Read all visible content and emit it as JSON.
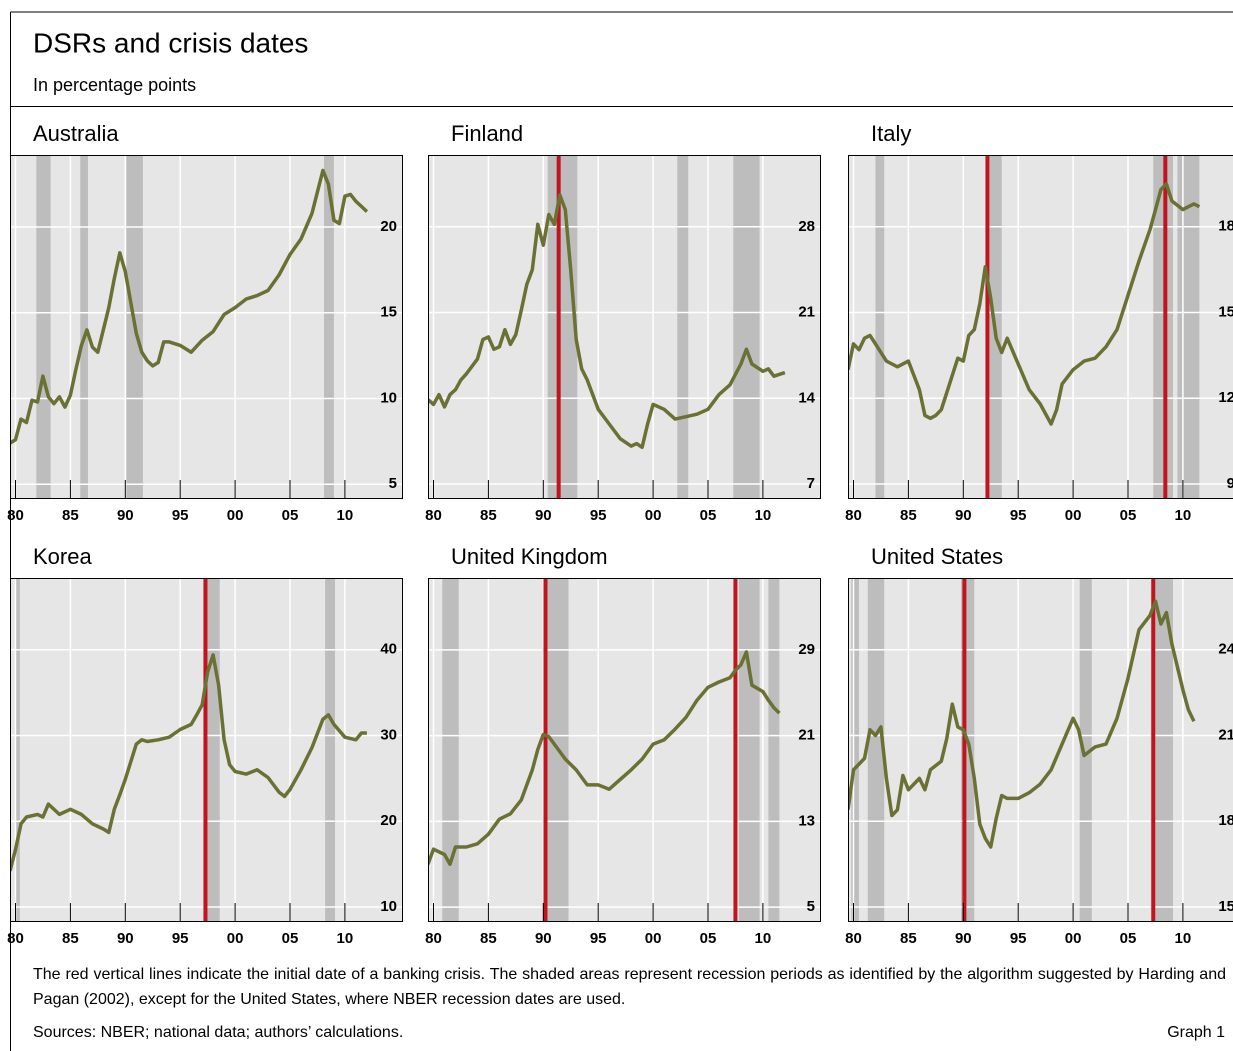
{
  "title": "DSRs and crisis dates",
  "subtitle": "In percentage points",
  "note": "The red vertical lines indicate the initial date of a banking crisis. The shaded areas represent recession periods as identified by the algorithm suggested by Harding and Pagan (2002), except for the United States, where NBER recession dates are used.",
  "sources": "Sources: NBER; national data; authors’ calculations.",
  "graph_label": "Graph 1",
  "chart_data": [
    {
      "type": "line",
      "title": "Australia",
      "color": "#6b7033",
      "recession_color": "#bdbdbd",
      "crisis_color": "#c0141e",
      "grid": true,
      "xlim": [
        1979.5,
        2015.2
      ],
      "ylim": [
        4.2,
        24.2
      ],
      "xticks": [
        {
          "value": 1980,
          "label": "80"
        },
        {
          "value": 1985,
          "label": "85"
        },
        {
          "value": 1990,
          "label": "90"
        },
        {
          "value": 1995,
          "label": "95"
        },
        {
          "value": 2000,
          "label": "00"
        },
        {
          "value": 2005,
          "label": "05"
        },
        {
          "value": 2010,
          "label": "10"
        }
      ],
      "yticks": [
        5,
        10,
        15,
        20
      ],
      "recessions": [
        [
          1981.9,
          1983.2
        ],
        [
          1985.9,
          1986.6
        ],
        [
          1990.1,
          1991.6
        ],
        [
          2008.1,
          2009.0
        ]
      ],
      "crises": [],
      "x": [
        1979.5,
        1980,
        1980.5,
        1981,
        1981.5,
        1982,
        1982.5,
        1983,
        1983.5,
        1984,
        1984.5,
        1985,
        1985.5,
        1986,
        1986.5,
        1987,
        1987.5,
        1988,
        1988.5,
        1989,
        1989.5,
        1990,
        1990.5,
        1991,
        1991.5,
        1992,
        1992.5,
        1993,
        1993.5,
        1994,
        1995,
        1996,
        1997,
        1998,
        1999,
        2000,
        2001,
        2002,
        2003,
        2004,
        2005,
        2006,
        2007,
        2008,
        2008.5,
        2009,
        2009.5,
        2010,
        2010.5,
        2011,
        2011.5,
        2012
      ],
      "values": [
        7.4,
        7.6,
        8.8,
        8.6,
        9.9,
        9.8,
        11.3,
        10.1,
        9.7,
        10.1,
        9.5,
        10.2,
        11.7,
        13.1,
        14.0,
        13.0,
        12.7,
        14.0,
        15.3,
        17.0,
        18.5,
        17.4,
        15.6,
        13.8,
        12.7,
        12.2,
        11.9,
        12.1,
        13.3,
        13.3,
        13.1,
        12.7,
        13.4,
        13.9,
        14.9,
        15.3,
        15.8,
        16.0,
        16.3,
        17.2,
        18.4,
        19.3,
        20.8,
        23.3,
        22.5,
        20.4,
        20.2,
        21.8,
        21.9,
        21.5,
        21.2,
        20.9
      ]
    },
    {
      "type": "line",
      "title": "Finland",
      "color": "#6b7033",
      "recession_color": "#bdbdbd",
      "crisis_color": "#c0141e",
      "grid": true,
      "xlim": [
        1979.5,
        2015.2
      ],
      "ylim": [
        5.86,
        33.86
      ],
      "xticks": [
        {
          "value": 1980,
          "label": "80"
        },
        {
          "value": 1985,
          "label": "85"
        },
        {
          "value": 1990,
          "label": "90"
        },
        {
          "value": 1995,
          "label": "95"
        },
        {
          "value": 2000,
          "label": "00"
        },
        {
          "value": 2005,
          "label": "05"
        },
        {
          "value": 2010,
          "label": "10"
        }
      ],
      "yticks": [
        7,
        14,
        21,
        28
      ],
      "recessions": [
        [
          1990.4,
          1993.1
        ],
        [
          2002.2,
          2003.2
        ],
        [
          2007.3,
          2009.7
        ]
      ],
      "crises": [
        1991.4
      ],
      "x": [
        1979.5,
        1980,
        1980.5,
        1981,
        1981.5,
        1982,
        1982.5,
        1983,
        1984,
        1984.5,
        1985,
        1985.5,
        1986,
        1986.5,
        1987,
        1987.5,
        1988,
        1988.5,
        1989,
        1989.5,
        1990,
        1990.5,
        1991,
        1991.5,
        1992,
        1992.5,
        1993,
        1993.5,
        1994,
        1994.5,
        1995,
        1996,
        1997,
        1998,
        1998.5,
        1999,
        1999.5,
        2000,
        2001,
        2002,
        2003,
        2004,
        2005,
        2006,
        2007,
        2008,
        2008.5,
        2009,
        2010,
        2010.5,
        2011,
        2012
      ],
      "values": [
        13.9,
        13.5,
        14.3,
        13.3,
        14.3,
        14.7,
        15.5,
        16.0,
        17.2,
        18.8,
        19.0,
        18.0,
        18.2,
        19.6,
        18.4,
        19.2,
        21.2,
        23.3,
        24.5,
        28.2,
        26.5,
        29.0,
        28.2,
        30.6,
        29.4,
        24.5,
        18.8,
        16.4,
        15.5,
        14.3,
        13.1,
        11.9,
        10.7,
        10.1,
        10.3,
        10.0,
        11.9,
        13.5,
        13.1,
        12.3,
        12.5,
        12.7,
        13.1,
        14.3,
        15.1,
        16.8,
        18.0,
        16.8,
        16.2,
        16.4,
        15.8,
        16.1
      ]
    },
    {
      "type": "line",
      "title": "Italy",
      "color": "#6b7033",
      "recession_color": "#bdbdbd",
      "crisis_color": "#c0141e",
      "grid": true,
      "xlim": [
        1979.5,
        2015.2
      ],
      "ylim": [
        8.51,
        20.51
      ],
      "xticks": [
        {
          "value": 1980,
          "label": "80"
        },
        {
          "value": 1985,
          "label": "85"
        },
        {
          "value": 1990,
          "label": "90"
        },
        {
          "value": 1995,
          "label": "95"
        },
        {
          "value": 2000,
          "label": "00"
        },
        {
          "value": 2005,
          "label": "05"
        },
        {
          "value": 2010,
          "label": "10"
        }
      ],
      "yticks": [
        9,
        12,
        15,
        18
      ],
      "recessions": [
        [
          1982.0,
          1982.8
        ],
        [
          1992.4,
          1993.5
        ],
        [
          2007.3,
          2009.1
        ],
        [
          2009.5,
          2011.5
        ]
      ],
      "crises": [
        1992.2,
        2008.4
      ],
      "x": [
        1979.5,
        1980,
        1980.5,
        1981,
        1981.5,
        1982,
        1983,
        1984,
        1985,
        1986,
        1986.5,
        1987,
        1987.5,
        1988,
        1989,
        1989.5,
        1990,
        1990.5,
        1991,
        1991.5,
        1992,
        1992.5,
        1993,
        1993.5,
        1994,
        1995,
        1996,
        1997,
        1998,
        1998.5,
        1999,
        2000,
        2001,
        2002,
        2003,
        2004,
        2005,
        2006,
        2007,
        2007.5,
        2008,
        2008.5,
        2009,
        2010,
        2010.5,
        2011,
        2011.5
      ],
      "values": [
        13.0,
        13.9,
        13.7,
        14.1,
        14.2,
        13.9,
        13.3,
        13.1,
        13.3,
        12.3,
        11.4,
        11.3,
        11.4,
        11.6,
        12.8,
        13.4,
        13.3,
        14.2,
        14.4,
        15.3,
        16.6,
        15.5,
        14.1,
        13.6,
        14.1,
        13.2,
        12.3,
        11.8,
        11.1,
        11.6,
        12.5,
        13.0,
        13.3,
        13.4,
        13.8,
        14.4,
        15.6,
        16.8,
        17.9,
        18.6,
        19.3,
        19.5,
        18.9,
        18.6,
        18.7,
        18.8,
        18.7
      ]
    },
    {
      "type": "line",
      "title": "Korea",
      "color": "#6b7033",
      "recession_color": "#bdbdbd",
      "crisis_color": "#c0141e",
      "grid": true,
      "xlim": [
        1979.5,
        2015.2
      ],
      "ylim": [
        8.37,
        48.37
      ],
      "xticks": [
        {
          "value": 1980,
          "label": "80"
        },
        {
          "value": 1985,
          "label": "85"
        },
        {
          "value": 1990,
          "label": "90"
        },
        {
          "value": 1995,
          "label": "95"
        },
        {
          "value": 2000,
          "label": "00"
        },
        {
          "value": 2005,
          "label": "05"
        },
        {
          "value": 2010,
          "label": "10"
        }
      ],
      "yticks": [
        10,
        20,
        30,
        40
      ],
      "recessions": [
        [
          1980.0,
          1980.4
        ],
        [
          1997.3,
          1998.6
        ],
        [
          2008.2,
          2009.1
        ]
      ],
      "crises": [
        1997.3
      ],
      "x": [
        1979.5,
        1980,
        1980.5,
        1981,
        1982,
        1982.5,
        1983,
        1984,
        1985,
        1986,
        1987,
        1988,
        1988.5,
        1989,
        1989.5,
        1990,
        1991,
        1991.5,
        1992,
        1993,
        1994,
        1995,
        1996,
        1996.5,
        1997,
        1997.5,
        1998,
        1998.5,
        1999,
        1999.5,
        2000,
        2001,
        2002,
        2003,
        2004,
        2004.5,
        2005,
        2006,
        2007,
        2008,
        2008.5,
        2009,
        2010,
        2011,
        2011.5,
        2012
      ],
      "values": [
        14.2,
        16.7,
        19.7,
        20.5,
        20.8,
        20.5,
        22.0,
        20.8,
        21.4,
        20.8,
        19.7,
        19.1,
        18.7,
        21.4,
        23.1,
        24.9,
        29.0,
        29.5,
        29.3,
        29.5,
        29.8,
        30.7,
        31.3,
        32.4,
        33.6,
        37.4,
        39.4,
        35.9,
        29.5,
        26.6,
        25.8,
        25.5,
        26.0,
        25.1,
        23.4,
        22.9,
        23.7,
        26.0,
        28.6,
        31.9,
        32.4,
        31.3,
        29.8,
        29.5,
        30.3,
        30.3
      ]
    },
    {
      "type": "line",
      "title": "United Kingdom",
      "color": "#6b7033",
      "recession_color": "#bdbdbd",
      "crisis_color": "#c0141e",
      "grid": true,
      "xlim": [
        1979.5,
        2015.2
      ],
      "ylim": [
        3.7,
        35.7
      ],
      "xticks": [
        {
          "value": 1980,
          "label": "80"
        },
        {
          "value": 1985,
          "label": "85"
        },
        {
          "value": 1990,
          "label": "90"
        },
        {
          "value": 1995,
          "label": "95"
        },
        {
          "value": 2000,
          "label": "00"
        },
        {
          "value": 2005,
          "label": "05"
        },
        {
          "value": 2010,
          "label": "10"
        }
      ],
      "yticks": [
        5,
        13,
        21,
        29
      ],
      "recessions": [
        [
          1980.8,
          1982.3
        ],
        [
          1990.1,
          1992.3
        ],
        [
          2007.8,
          2009.7
        ],
        [
          2010.5,
          2011.5
        ]
      ],
      "crises": [
        1990.2,
        2007.5
      ],
      "x": [
        1979.5,
        1980,
        1981,
        1981.5,
        1982,
        1983,
        1984,
        1985,
        1986,
        1987,
        1988,
        1989,
        1989.5,
        1990,
        1990.5,
        1991,
        1992,
        1993,
        1994,
        1995,
        1996,
        1997,
        1998,
        1999,
        2000,
        2001,
        2002,
        2003,
        2004,
        2005,
        2006,
        2007,
        2007.5,
        2008,
        2008.5,
        2009,
        2010,
        2010.5,
        2011,
        2011.5
      ],
      "values": [
        9.0,
        10.4,
        9.9,
        9.0,
        10.6,
        10.6,
        10.9,
        11.8,
        13.2,
        13.7,
        15.0,
        17.8,
        19.7,
        21.1,
        20.9,
        20.2,
        18.8,
        17.8,
        16.4,
        16.4,
        16.0,
        16.9,
        17.8,
        18.8,
        20.2,
        20.6,
        21.6,
        22.7,
        24.3,
        25.5,
        26.0,
        26.4,
        27.1,
        27.6,
        28.8,
        25.7,
        25.1,
        24.3,
        23.6,
        23.1
      ]
    },
    {
      "type": "line",
      "title": "United States",
      "color": "#6b7033",
      "recession_color": "#bdbdbd",
      "crisis_color": "#c0141e",
      "grid": true,
      "xlim": [
        1979.5,
        2015.2
      ],
      "ylim": [
        14.51,
        26.51
      ],
      "xticks": [
        {
          "value": 1980,
          "label": "80"
        },
        {
          "value": 1985,
          "label": "85"
        },
        {
          "value": 1990,
          "label": "90"
        },
        {
          "value": 1995,
          "label": "95"
        },
        {
          "value": 2000,
          "label": "00"
        },
        {
          "value": 2005,
          "label": "05"
        },
        {
          "value": 2010,
          "label": "10"
        }
      ],
      "yticks": [
        15,
        18,
        21,
        24
      ],
      "recessions": [
        [
          1979.8,
          1980.5
        ],
        [
          1981.3,
          1982.8
        ],
        [
          1989.8,
          1991.0
        ],
        [
          2000.6,
          2001.7
        ],
        [
          2007.3,
          2009.1
        ]
      ],
      "crises": [
        1990.1,
        2007.3
      ],
      "x": [
        1979.5,
        1980,
        1980.5,
        1981,
        1981.5,
        1982,
        1982.5,
        1983,
        1983.5,
        1984,
        1984.5,
        1985,
        1986,
        1986.5,
        1987,
        1988,
        1988.5,
        1989,
        1989.5,
        1990,
        1990.5,
        1991,
        1991.5,
        1992,
        1992.5,
        1993,
        1993.5,
        1994,
        1995,
        1996,
        1997,
        1998,
        1999,
        2000,
        2000.5,
        2001,
        2002,
        2003,
        2004,
        2005,
        2006,
        2007,
        2007.5,
        2008,
        2008.5,
        2009,
        2010,
        2010.5,
        2011
      ],
      "values": [
        18.4,
        19.8,
        20.0,
        20.2,
        21.2,
        21.0,
        21.3,
        19.5,
        18.2,
        18.4,
        19.6,
        19.1,
        19.5,
        19.1,
        19.8,
        20.1,
        20.9,
        22.1,
        21.3,
        21.2,
        20.7,
        19.5,
        17.9,
        17.4,
        17.1,
        18.1,
        18.9,
        18.8,
        18.8,
        19.0,
        19.3,
        19.8,
        20.7,
        21.6,
        21.2,
        20.3,
        20.6,
        20.7,
        21.6,
        23.0,
        24.7,
        25.2,
        25.7,
        24.9,
        25.3,
        24.2,
        22.6,
        21.9,
        21.5
      ]
    }
  ]
}
